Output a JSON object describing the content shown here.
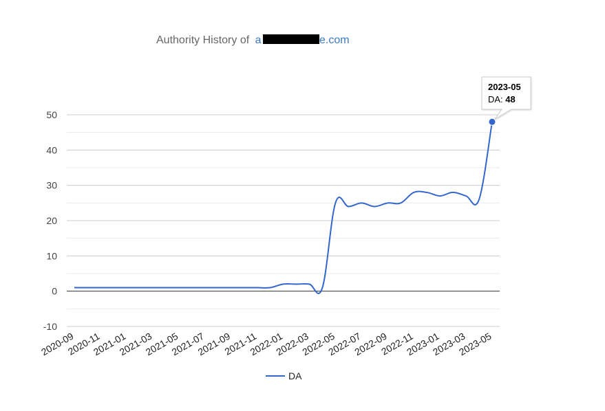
{
  "title": {
    "prefix": "Authority History of",
    "domain_start": "a",
    "domain_end": "e.com"
  },
  "chart_data": {
    "type": "line",
    "title": "Authority History of a█████e.com",
    "x": [
      "2020-09",
      "2020-10",
      "2020-11",
      "2020-12",
      "2021-01",
      "2021-02",
      "2021-03",
      "2021-04",
      "2021-05",
      "2021-06",
      "2021-07",
      "2021-08",
      "2021-09",
      "2021-10",
      "2021-11",
      "2021-12",
      "2022-01",
      "2022-02",
      "2022-03",
      "2022-04",
      "2022-05",
      "2022-06",
      "2022-07",
      "2022-08",
      "2022-09",
      "2022-10",
      "2022-11",
      "2022-12",
      "2023-01",
      "2023-02",
      "2023-03",
      "2023-04",
      "2023-05"
    ],
    "x_tick_labels": [
      "2020-09",
      "2020-11",
      "2021-01",
      "2021-03",
      "2021-05",
      "2021-07",
      "2021-09",
      "2021-11",
      "2022-01",
      "2022-03",
      "2022-05",
      "2022-07",
      "2022-09",
      "2022-11",
      "2023-01",
      "2023-03",
      "2023-05"
    ],
    "series": [
      {
        "name": "DA",
        "color": "#3366cc",
        "values": [
          1,
          1,
          1,
          1,
          1,
          1,
          1,
          1,
          1,
          1,
          1,
          1,
          1,
          1,
          1,
          1,
          2,
          2,
          2,
          1,
          25,
          24,
          25,
          24,
          25,
          25,
          28,
          28,
          27,
          28,
          27,
          26,
          48
        ]
      }
    ],
    "ylim": [
      -10,
      50
    ],
    "y_ticks": [
      -10,
      0,
      10,
      20,
      30,
      40,
      50
    ],
    "grid": true,
    "legend": "bottom",
    "tooltip": {
      "label": "2023-05",
      "series_label": "DA:",
      "value": "48"
    }
  }
}
